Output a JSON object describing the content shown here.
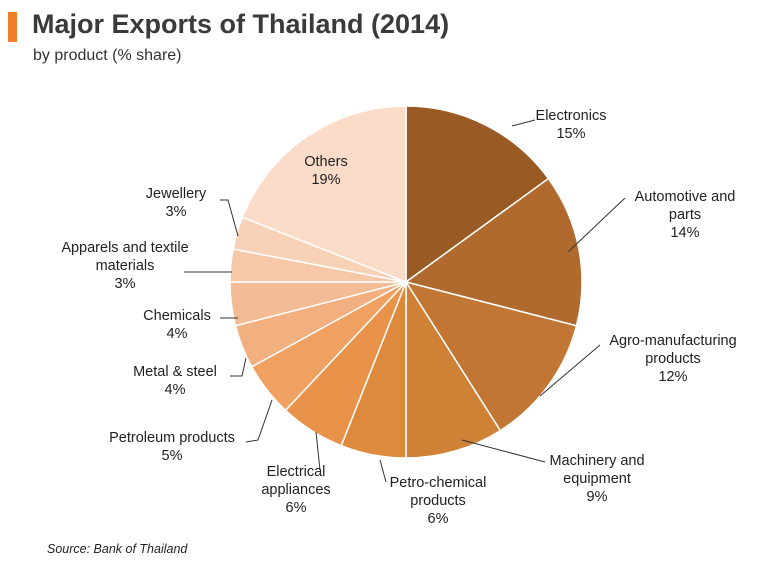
{
  "header": {
    "title": "Major Exports of Thailand (2014)",
    "subtitle": "by product (% share)",
    "accent_color": "#f07f2a"
  },
  "footer": {
    "source": "Source: Bank of Thailand"
  },
  "chart_data": {
    "type": "pie",
    "title": "Major Exports of Thailand (2014)",
    "subtitle": "by product (% share)",
    "legend": "none",
    "data_labels": "outside with leader lines",
    "start": "top, clockwise",
    "slices": [
      {
        "label_lines": [
          "Electronics"
        ],
        "value": 15,
        "value_label": "15%",
        "color": "#9a5a24"
      },
      {
        "label_lines": [
          "Automotive and",
          "parts"
        ],
        "value": 14,
        "value_label": "14%",
        "color": "#b06a2e"
      },
      {
        "label_lines": [
          "Agro-manufacturing",
          "products"
        ],
        "value": 12,
        "value_label": "12%",
        "color": "#c17733"
      },
      {
        "label_lines": [
          "Machinery and",
          "equipment"
        ],
        "value": 9,
        "value_label": "9%",
        "color": "#cf8136"
      },
      {
        "label_lines": [
          "Petro-chemical",
          "products"
        ],
        "value": 6,
        "value_label": "6%",
        "color": "#dd8a3c"
      },
      {
        "label_lines": [
          "Electrical",
          "appliances"
        ],
        "value": 6,
        "value_label": "6%",
        "color": "#e8924a"
      },
      {
        "label_lines": [
          "Petroleum products"
        ],
        "value": 5,
        "value_label": "5%",
        "color": "#f0a060"
      },
      {
        "label_lines": [
          "Metal & steel"
        ],
        "value": 4,
        "value_label": "4%",
        "color": "#f2b080"
      },
      {
        "label_lines": [
          "Chemicals"
        ],
        "value": 4,
        "value_label": "4%",
        "color": "#f4bc94"
      },
      {
        "label_lines": [
          "Apparels and textile",
          "materials"
        ],
        "value": 3,
        "value_label": "3%",
        "color": "#f6c8a8"
      },
      {
        "label_lines": [
          "Jewellery"
        ],
        "value": 3,
        "value_label": "3%",
        "color": "#f8d2b6"
      },
      {
        "label_lines": [
          "Others"
        ],
        "value": 19,
        "value_label": "19%",
        "color": "#fadcc8"
      }
    ]
  }
}
